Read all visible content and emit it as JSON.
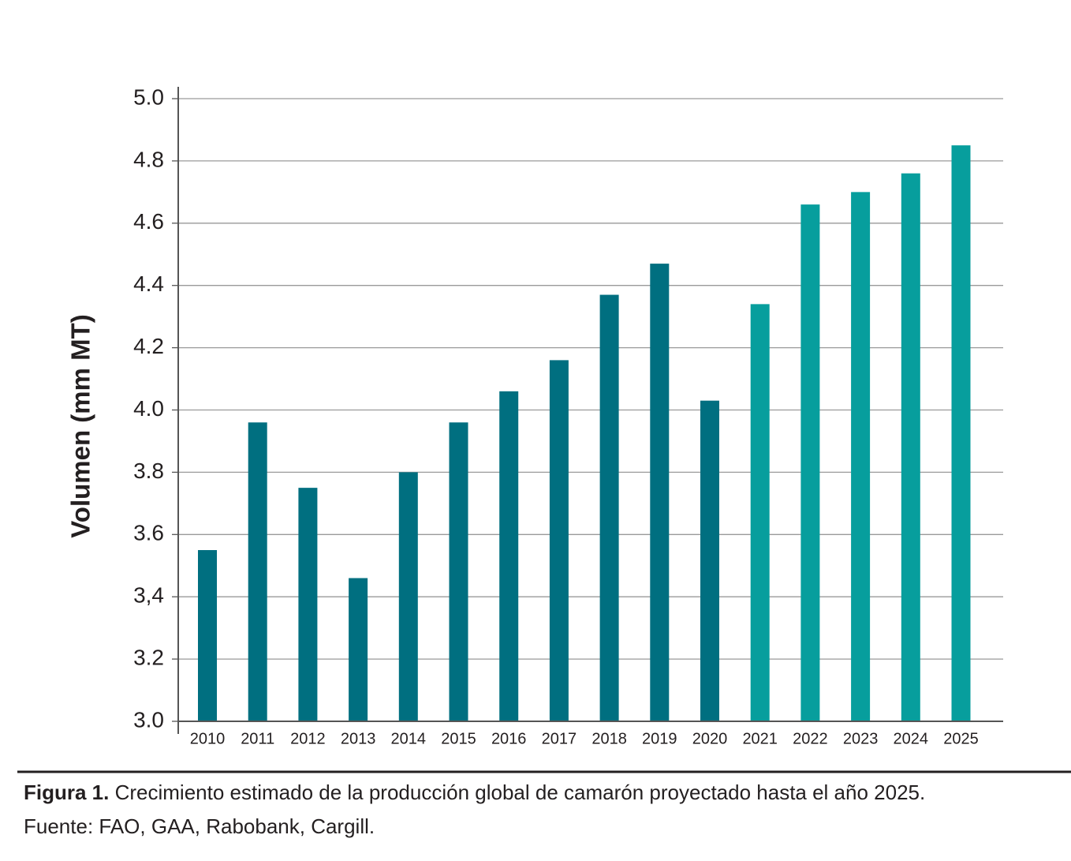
{
  "chart_data": {
    "type": "bar",
    "y_label": "Volumen (mm MT)",
    "categories": [
      "2010",
      "2011",
      "2012",
      "2013",
      "2014",
      "2015",
      "2016",
      "2017",
      "2018",
      "2019",
      "2020",
      "2021",
      "2022",
      "2023",
      "2024",
      "2025"
    ],
    "values": [
      3.55,
      3.96,
      3.75,
      3.46,
      3.8,
      3.96,
      4.06,
      4.16,
      4.37,
      4.47,
      4.03,
      4.34,
      4.66,
      4.7,
      4.76,
      4.85
    ],
    "colors": [
      "#006f80",
      "#006f80",
      "#006f80",
      "#006f80",
      "#006f80",
      "#006f80",
      "#006f80",
      "#006f80",
      "#006f80",
      "#006f80",
      "#006f80",
      "#079e9d",
      "#079e9d",
      "#079e9d",
      "#079e9d",
      "#079e9d"
    ],
    "ylim": [
      3.0,
      5.0
    ],
    "yticks": [
      {
        "value": 3.0,
        "label": "3.0"
      },
      {
        "value": 3.2,
        "label": "3.2"
      },
      {
        "value": 3.4,
        "label": "3,4"
      },
      {
        "value": 3.6,
        "label": "3.6"
      },
      {
        "value": 3.8,
        "label": "3.8"
      },
      {
        "value": 4.0,
        "label": "4.0"
      },
      {
        "value": 4.2,
        "label": "4.2"
      },
      {
        "value": 4.4,
        "label": "4.4"
      },
      {
        "value": 4.6,
        "label": "4.6"
      },
      {
        "value": 4.8,
        "label": "4.8"
      },
      {
        "value": 5.0,
        "label": "5.0"
      }
    ],
    "grid": true,
    "caption_label": "Figura 1.",
    "caption": "Crecimiento estimado de la producción global de camarón proyectado hasta el año 2025.",
    "source": "Fuente: FAO, GAA, Rabobank, Cargill."
  }
}
